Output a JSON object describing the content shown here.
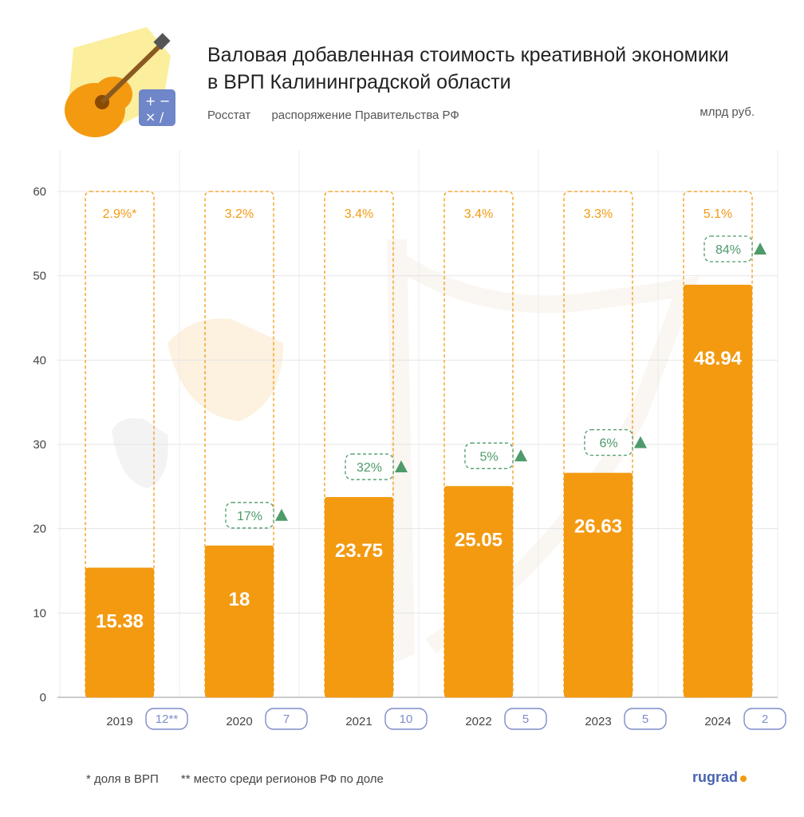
{
  "header": {
    "title_line1": "Валовая добавленная стоимость креативной экономики",
    "title_line2": "в ВРП Калининградской области",
    "source1": "Росстат",
    "source2": "распоряжение Правительства РФ",
    "unit": "млрд руб."
  },
  "footer": {
    "note1": "* доля в ВРП",
    "note2": "** место среди регионов РФ по доле",
    "logo": "rugrad"
  },
  "colors": {
    "bar": "#f39a11",
    "share": "#f39a11",
    "growth": "#4e9a6a",
    "rank": "#7f8cc9"
  },
  "icons": [
    "guitar-icon",
    "calculator-icon"
  ],
  "chart_data": {
    "type": "bar",
    "categories": [
      "2019",
      "2020",
      "2021",
      "2022",
      "2023",
      "2024"
    ],
    "values": [
      15.38,
      18,
      23.75,
      25.05,
      26.63,
      48.94
    ],
    "value_labels": [
      "15.38",
      "18",
      "23.75",
      "25.05",
      "26.63",
      "48.94"
    ],
    "share_of_grp": [
      "2.9%*",
      "3.2%",
      "3.4%",
      "3.4%",
      "3.3%",
      "5.1%"
    ],
    "growth": [
      "",
      "17%",
      "32%",
      "5%",
      "6%",
      "84%"
    ],
    "rank": [
      "12**",
      "7",
      "10",
      "5",
      "5",
      "2"
    ],
    "ylim": [
      0,
      60
    ],
    "yticks": [
      0,
      10,
      20,
      30,
      40,
      50,
      60
    ],
    "grid": true,
    "title": "Валовая добавленная стоимость креативной экономики в ВРП Калининградской области",
    "ylabel": "млрд руб.",
    "xlabel": ""
  }
}
